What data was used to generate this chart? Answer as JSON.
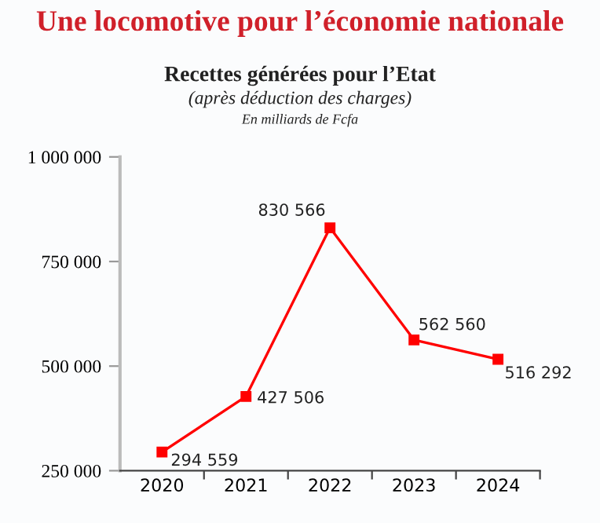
{
  "chart_data": {
    "type": "line",
    "title": "Une locomotive pour l’économie nationale",
    "subtitle": "Recettes générées pour l’Etat",
    "annotations": [
      "(après déduction des charges)",
      "En milliards de Fcfa"
    ],
    "categories": [
      "2020",
      "2021",
      "2022",
      "2023",
      "2024"
    ],
    "series": [
      {
        "color": "#ff0000",
        "values": [
          294559,
          427506,
          830566,
          562560,
          516292
        ]
      }
    ],
    "value_labels": [
      "294 559",
      "427 506",
      "830 566",
      "562 560",
      "516 292"
    ],
    "ylim": [
      250000,
      1000000
    ],
    "yticks": [
      {
        "value": 250000,
        "label": "250 000"
      },
      {
        "value": 500000,
        "label": "500 000"
      },
      {
        "value": 750000,
        "label": "750 000"
      },
      {
        "value": 1000000,
        "label": "1 000 000"
      }
    ],
    "marker": "square",
    "line_style": "solid",
    "grid": false,
    "legend": false
  }
}
